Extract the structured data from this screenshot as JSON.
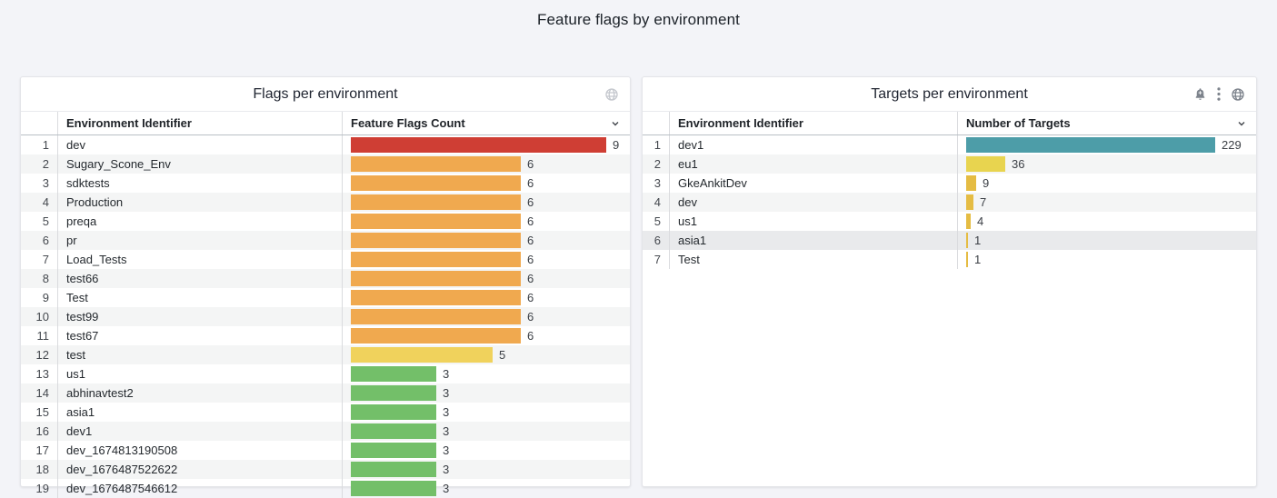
{
  "page": {
    "title": "Feature flags by environment",
    "background": "#f3f4f8"
  },
  "panels": [
    {
      "id": "flags",
      "title": "Flags per environment",
      "icons": [
        "globe-icon"
      ],
      "columns": {
        "identifier": "Environment Identifier",
        "value": "Feature Flags Count"
      },
      "scale_max": 9,
      "rows": [
        {
          "index": 1,
          "label": "dev",
          "value": 9,
          "color": "#cf3e34"
        },
        {
          "index": 2,
          "label": "Sugary_Scone_Env",
          "value": 6,
          "color": "#f0a94f"
        },
        {
          "index": 3,
          "label": "sdktests",
          "value": 6,
          "color": "#f0a94f"
        },
        {
          "index": 4,
          "label": "Production",
          "value": 6,
          "color": "#f0a94f"
        },
        {
          "index": 5,
          "label": "preqa",
          "value": 6,
          "color": "#f0a94f"
        },
        {
          "index": 6,
          "label": "pr",
          "value": 6,
          "color": "#f0a94f"
        },
        {
          "index": 7,
          "label": "Load_Tests",
          "value": 6,
          "color": "#f0a94f"
        },
        {
          "index": 8,
          "label": "test66",
          "value": 6,
          "color": "#f0a94f"
        },
        {
          "index": 9,
          "label": "Test",
          "value": 6,
          "color": "#f0a94f"
        },
        {
          "index": 10,
          "label": "test99",
          "value": 6,
          "color": "#f0a94f"
        },
        {
          "index": 11,
          "label": "test67",
          "value": 6,
          "color": "#f0a94f"
        },
        {
          "index": 12,
          "label": "test",
          "value": 5,
          "color": "#f0d25c"
        },
        {
          "index": 13,
          "label": "us1",
          "value": 3,
          "color": "#73bf69"
        },
        {
          "index": 14,
          "label": "abhinavtest2",
          "value": 3,
          "color": "#73bf69"
        },
        {
          "index": 15,
          "label": "asia1",
          "value": 3,
          "color": "#73bf69"
        },
        {
          "index": 16,
          "label": "dev1",
          "value": 3,
          "color": "#73bf69"
        },
        {
          "index": 17,
          "label": "dev_1674813190508",
          "value": 3,
          "color": "#73bf69"
        },
        {
          "index": 18,
          "label": "dev_1676487522622",
          "value": 3,
          "color": "#73bf69"
        },
        {
          "index": 19,
          "label": "dev_1676487546612",
          "value": 3,
          "color": "#73bf69"
        }
      ]
    },
    {
      "id": "targets",
      "title": "Targets per environment",
      "icons": [
        "bell-plus-icon",
        "kebab-menu-icon",
        "globe-icon"
      ],
      "columns": {
        "identifier": "Environment Identifier",
        "value": "Number of Targets"
      },
      "scale_max": 229,
      "rows": [
        {
          "index": 1,
          "label": "dev1",
          "value": 229,
          "color": "#4d9da8"
        },
        {
          "index": 2,
          "label": "eu1",
          "value": 36,
          "color": "#e8d44f"
        },
        {
          "index": 3,
          "label": "GkeAnkitDev",
          "value": 9,
          "color": "#e5bc43"
        },
        {
          "index": 4,
          "label": "dev",
          "value": 7,
          "color": "#e5bc43"
        },
        {
          "index": 5,
          "label": "us1",
          "value": 4,
          "color": "#e5bc43"
        },
        {
          "index": 6,
          "label": "asia1",
          "value": 1,
          "color": "#e5bc43",
          "highlight": true
        },
        {
          "index": 7,
          "label": "Test",
          "value": 1,
          "color": "#e5bc43"
        }
      ]
    }
  ],
  "chart_data": [
    {
      "type": "bar",
      "orientation": "horizontal",
      "title": "Flags per environment",
      "xlabel": "Feature Flags Count",
      "xlim": [
        0,
        9
      ],
      "categories": [
        "dev",
        "Sugary_Scone_Env",
        "sdktests",
        "Production",
        "preqa",
        "pr",
        "Load_Tests",
        "test66",
        "Test",
        "test99",
        "test67",
        "test",
        "us1",
        "abhinavtest2",
        "asia1",
        "dev1",
        "dev_1674813190508",
        "dev_1676487522622",
        "dev_1676487546612"
      ],
      "values": [
        9,
        6,
        6,
        6,
        6,
        6,
        6,
        6,
        6,
        6,
        6,
        5,
        3,
        3,
        3,
        3,
        3,
        3,
        3
      ]
    },
    {
      "type": "bar",
      "orientation": "horizontal",
      "title": "Targets per environment",
      "xlabel": "Number of Targets",
      "xlim": [
        0,
        229
      ],
      "categories": [
        "dev1",
        "eu1",
        "GkeAnkitDev",
        "dev",
        "us1",
        "asia1",
        "Test"
      ],
      "values": [
        229,
        36,
        9,
        7,
        4,
        1,
        1
      ]
    }
  ]
}
